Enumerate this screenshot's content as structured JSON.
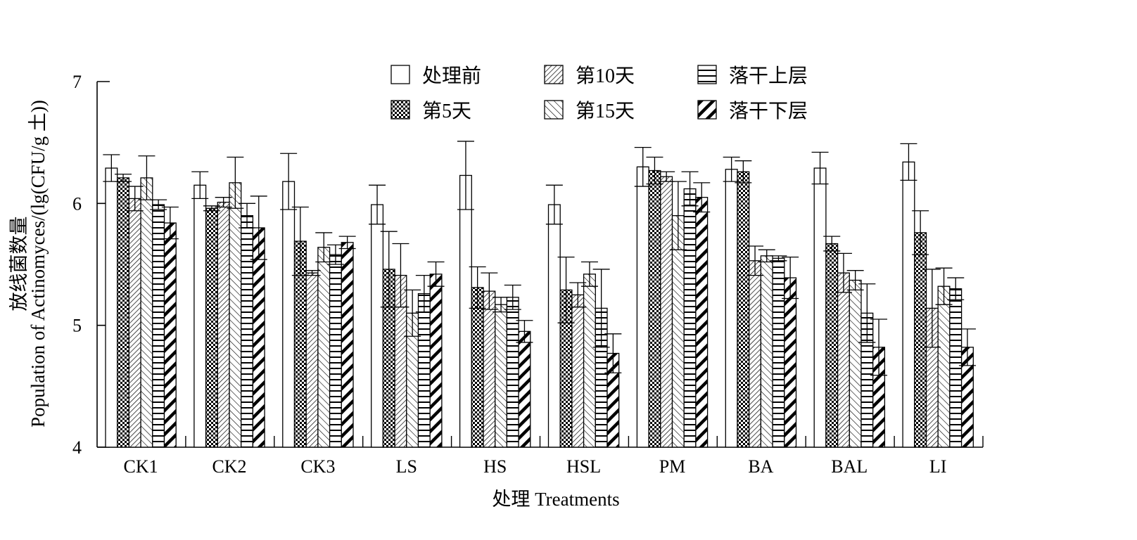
{
  "chart_data": {
    "type": "bar",
    "xlabel": "处理 Treatments",
    "ylabel_line1": "放线菌数量",
    "ylabel_line2": "Population of Actinomyces/(lg(CFU/g 土))",
    "ylim": [
      4,
      7
    ],
    "yticks": [
      4,
      5,
      6,
      7
    ],
    "error_bars": true,
    "legend_position": "top-center",
    "categories": [
      "CK1",
      "CK2",
      "CK3",
      "LS",
      "HS",
      "HSL",
      "PM",
      "BA",
      "BAL",
      "LI"
    ],
    "series": [
      {
        "name": "处理前",
        "pattern": "blank",
        "values": [
          6.29,
          6.15,
          6.18,
          5.99,
          6.23,
          5.99,
          6.3,
          6.28,
          6.29,
          6.34
        ],
        "errors": [
          0.11,
          0.11,
          0.23,
          0.16,
          0.28,
          0.16,
          0.16,
          0.1,
          0.13,
          0.15
        ]
      },
      {
        "name": "第5天",
        "pattern": "checker",
        "values": [
          6.21,
          5.96,
          5.69,
          5.46,
          5.31,
          5.29,
          6.27,
          6.26,
          5.67,
          5.76
        ],
        "errors": [
          0.03,
          0.02,
          0.28,
          0.31,
          0.17,
          0.27,
          0.11,
          0.09,
          0.06,
          0.18
        ]
      },
      {
        "name": "第10天",
        "pattern": "diag-dense",
        "values": [
          6.04,
          6.01,
          5.43,
          5.41,
          5.28,
          5.25,
          6.22,
          5.53,
          5.43,
          5.14
        ],
        "errors": [
          0.1,
          0.04,
          0.02,
          0.26,
          0.15,
          0.1,
          0.04,
          0.12,
          0.16,
          0.32
        ]
      },
      {
        "name": "第15天",
        "pattern": "diag-sparse",
        "values": [
          6.21,
          6.17,
          5.64,
          5.1,
          5.17,
          5.42,
          5.9,
          5.57,
          5.37,
          5.32
        ],
        "errors": [
          0.18,
          0.21,
          0.12,
          0.19,
          0.06,
          0.1,
          0.28,
          0.05,
          0.08,
          0.15
        ]
      },
      {
        "name": "落干上层",
        "pattern": "horizontal",
        "values": [
          5.99,
          5.9,
          5.58,
          5.26,
          5.23,
          5.14,
          6.12,
          5.55,
          5.1,
          5.3
        ],
        "errors": [
          0.04,
          0.1,
          0.08,
          0.15,
          0.1,
          0.32,
          0.14,
          0.02,
          0.24,
          0.09
        ]
      },
      {
        "name": "落干下层",
        "pattern": "back-diag",
        "values": [
          5.84,
          5.8,
          5.68,
          5.42,
          4.95,
          4.77,
          6.05,
          5.39,
          4.82,
          4.82
        ],
        "errors": [
          0.13,
          0.26,
          0.05,
          0.1,
          0.09,
          0.16,
          0.12,
          0.17,
          0.23,
          0.15
        ]
      }
    ]
  }
}
